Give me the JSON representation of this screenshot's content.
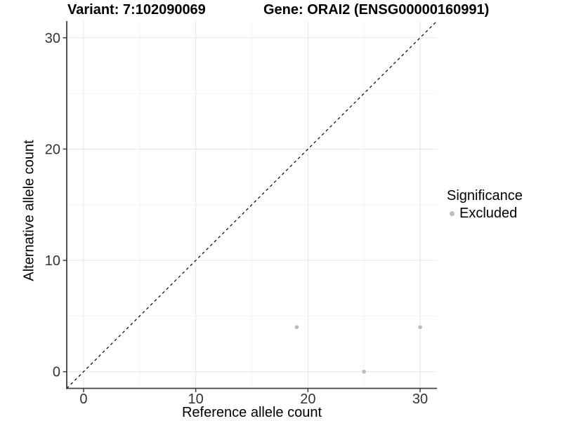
{
  "chart_data": {
    "type": "scatter",
    "title_left": "Variant: 7:102090069",
    "title_right": "Gene: ORAI2 (ENSG00000160991)",
    "xlabel": "Reference allele count",
    "ylabel": "Alternative allele count",
    "xlim": [
      -1.5,
      31.5
    ],
    "ylim": [
      -1.5,
      31.5
    ],
    "x_ticks": [
      0,
      10,
      20,
      30
    ],
    "y_ticks": [
      0,
      10,
      20,
      30
    ],
    "x_minor_ticks": [
      5,
      15,
      25
    ],
    "y_minor_ticks": [
      5,
      15,
      25
    ],
    "grid": true,
    "legend_position": "right",
    "identity_line": {
      "slope": 1,
      "intercept": 0,
      "style": "dashed",
      "color": "#000000"
    },
    "legend": {
      "title": "Significance",
      "items": [
        {
          "label": "Excluded",
          "color": "#bdbdbd"
        }
      ]
    },
    "series": [
      {
        "name": "Excluded",
        "color": "#bdbdbd",
        "points": [
          {
            "x": 19,
            "y": 4
          },
          {
            "x": 25,
            "y": 0
          },
          {
            "x": 30,
            "y": 4
          }
        ]
      }
    ],
    "colors": {
      "background": "#ffffff",
      "grid_major": "#e7e7e7",
      "grid_minor": "#f3f3f3",
      "axis_line": "#3f3f3f",
      "tick_text": "#333333",
      "point": "#bdbdbd"
    }
  }
}
